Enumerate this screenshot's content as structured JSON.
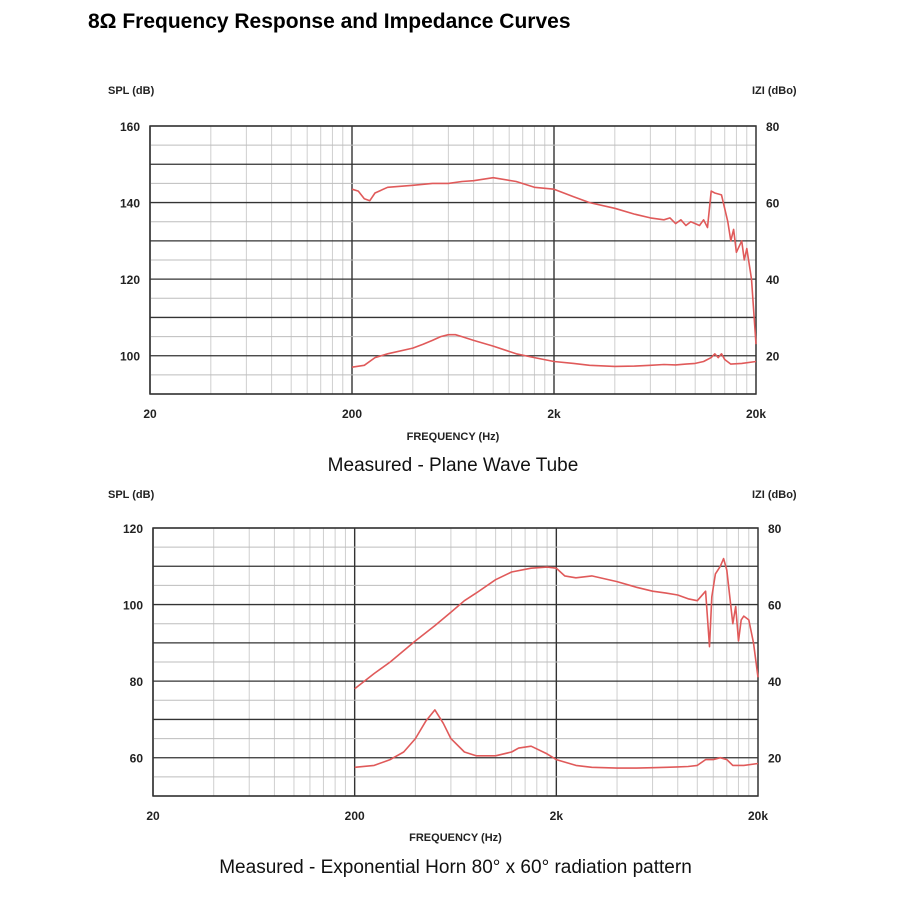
{
  "title": "8Ω Frequency Response and Impedance Curves",
  "chart_data": [
    {
      "type": "line",
      "caption": "Measured - Plane Wave Tube",
      "xlabel": "FREQUENCY (Hz)",
      "ylabel_left": "SPL (dB)",
      "ylabel_right": "IZI (dBo)",
      "x_scale": "log",
      "xlim": [
        20,
        20000
      ],
      "ylim_left": [
        90,
        160
      ],
      "ylim_right": [
        10,
        80
      ],
      "x_tick_values": [
        20,
        200,
        2000,
        20000
      ],
      "x_tick_labels": [
        "20",
        "200",
        "2k",
        "20k"
      ],
      "y_left_ticks": [
        100,
        120,
        140,
        160
      ],
      "y_right_ticks": [
        20,
        40,
        60,
        80
      ],
      "grid": true,
      "line_color": "#e05a5a",
      "series": [
        {
          "axis": "left",
          "x": [
            200,
            215,
            230,
            245,
            260,
            300,
            400,
            500,
            600,
            700,
            800,
            1000,
            1300,
            1600,
            2000,
            2500,
            3000,
            4000,
            5000,
            6000,
            7000,
            7500,
            8000,
            8500,
            9000,
            9500,
            10000,
            10500,
            11000,
            11500,
            12000,
            12500,
            13500,
            14500,
            15000,
            15500,
            16000,
            17000,
            17500,
            18000,
            19000,
            20000
          ],
          "y": [
            143.5,
            143,
            141,
            140.5,
            142.5,
            144,
            144.5,
            145,
            145,
            145.5,
            145.7,
            146.5,
            145.5,
            144,
            143.5,
            141.5,
            140,
            138.5,
            137,
            136,
            135.5,
            136,
            134.5,
            135.5,
            134,
            135,
            134.5,
            134,
            135.5,
            133.5,
            143,
            142.5,
            142,
            135,
            130,
            133,
            127,
            130,
            125,
            128,
            120,
            103
          ]
        },
        {
          "axis": "right",
          "x": [
            200,
            230,
            260,
            300,
            400,
            450,
            500,
            550,
            600,
            650,
            700,
            800,
            1000,
            1300,
            1600,
            2000,
            2500,
            3000,
            4000,
            5000,
            6000,
            7000,
            8000,
            9000,
            10000,
            11000,
            12000,
            12500,
            13000,
            13500,
            14000,
            15000,
            17000,
            20000
          ],
          "y": [
            17,
            17.5,
            19.5,
            20.5,
            22,
            23,
            24,
            25,
            25.5,
            25.5,
            25,
            24,
            22.5,
            20.5,
            19.5,
            18.5,
            18,
            17.5,
            17.2,
            17.3,
            17.5,
            17.7,
            17.6,
            17.8,
            18,
            18.5,
            19.5,
            20.5,
            19.5,
            20.5,
            19,
            17.8,
            18,
            18.5
          ]
        }
      ]
    },
    {
      "type": "line",
      "caption": "Measured - Exponential Horn 80° x 60° radiation pattern",
      "xlabel": "FREQUENCY (Hz)",
      "ylabel_left": "SPL (dB)",
      "ylabel_right": "IZI (dBo)",
      "x_scale": "log",
      "xlim": [
        20,
        20000
      ],
      "ylim_left": [
        50,
        120
      ],
      "ylim_right": [
        10,
        80
      ],
      "x_tick_values": [
        20,
        200,
        2000,
        20000
      ],
      "x_tick_labels": [
        "20",
        "200",
        "2k",
        "20k"
      ],
      "y_left_ticks": [
        60,
        80,
        100,
        120
      ],
      "y_right_ticks": [
        20,
        40,
        60,
        80
      ],
      "grid": true,
      "line_color": "#e05a5a",
      "series": [
        {
          "axis": "left",
          "x": [
            200,
            250,
            300,
            400,
            500,
            600,
            700,
            800,
            1000,
            1200,
            1500,
            1800,
            2000,
            2200,
            2500,
            3000,
            4000,
            5000,
            6000,
            7000,
            8000,
            9000,
            10000,
            11000,
            11500,
            11800,
            12300,
            13000,
            13500,
            14000,
            14500,
            15000,
            15500,
            16000,
            16500,
            17000,
            18000,
            19000,
            20000
          ],
          "y": [
            78,
            82,
            85,
            90.5,
            94.5,
            98,
            101,
            103,
            106.5,
            108.5,
            109.5,
            109.8,
            109.5,
            107.5,
            107,
            107.5,
            106,
            104.5,
            103.5,
            103,
            102.5,
            101.5,
            101,
            103.5,
            89,
            102,
            108,
            110,
            112,
            109,
            102,
            95,
            99.5,
            90.5,
            96,
            97,
            96,
            90,
            81
          ]
        },
        {
          "axis": "right",
          "x": [
            200,
            250,
            300,
            350,
            400,
            450,
            500,
            550,
            600,
            700,
            800,
            1000,
            1200,
            1300,
            1500,
            1800,
            2000,
            2500,
            3000,
            4000,
            5000,
            6000,
            7000,
            8000,
            9000,
            10000,
            11000,
            12000,
            13000,
            14000,
            15000,
            17000,
            20000
          ],
          "y": [
            17.5,
            18,
            19.5,
            21.5,
            25,
            29.5,
            32.5,
            29,
            25,
            21.5,
            20.5,
            20.5,
            21.5,
            22.5,
            23,
            21,
            19.5,
            18,
            17.5,
            17.3,
            17.3,
            17.4,
            17.5,
            17.6,
            17.7,
            18,
            19.5,
            19.5,
            20,
            19.5,
            18,
            18,
            18.5
          ]
        }
      ]
    }
  ]
}
